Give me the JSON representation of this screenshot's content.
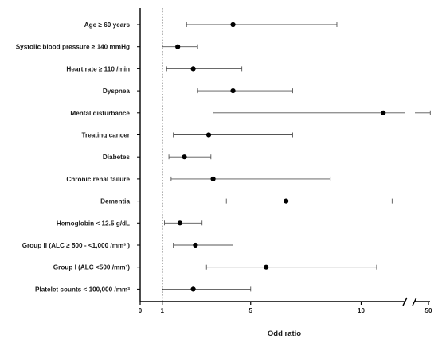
{
  "chart_data": {
    "type": "forest",
    "xlabel": "Odd ratio",
    "ylabel": "",
    "title": "",
    "x_ticks": [
      {
        "value": 0,
        "label": "0"
      },
      {
        "value": 1,
        "label": "1"
      },
      {
        "value": 5,
        "label": "5"
      },
      {
        "value": 10,
        "label": "10"
      },
      {
        "value": 50,
        "label": "50"
      }
    ],
    "x_axis_break": {
      "between": [
        13,
        50
      ]
    },
    "reference_line": 1,
    "grid": false,
    "rows": [
      {
        "label": "Age ≥ 60 years",
        "or": 4.2,
        "lower": 2.1,
        "upper": 8.9
      },
      {
        "label": "Systolic blood pressure ≥ 140 mmHg",
        "or": 1.7,
        "lower": 1.0,
        "upper": 2.6
      },
      {
        "label": "Heart rate ≥ 110 /min",
        "or": 2.4,
        "lower": 1.2,
        "upper": 4.6
      },
      {
        "label": "Dyspnea",
        "or": 4.2,
        "lower": 2.6,
        "upper": 6.9
      },
      {
        "label": "Mental disturbance",
        "or": 11.0,
        "lower": 3.3,
        "upper": 55.0
      },
      {
        "label": "Treating cancer",
        "or": 3.1,
        "lower": 1.5,
        "upper": 6.9
      },
      {
        "label": "Diabetes",
        "or": 2.0,
        "lower": 1.3,
        "upper": 3.2
      },
      {
        "label": "Chronic renal failure",
        "or": 3.3,
        "lower": 1.4,
        "upper": 8.6
      },
      {
        "label": "Dementia",
        "or": 6.6,
        "lower": 3.9,
        "upper": 11.4
      },
      {
        "label": "Hemoglobin < 12.5 g/dL",
        "or": 1.8,
        "lower": 1.1,
        "upper": 2.8
      },
      {
        "label": "Group II (ALC ≥ 500 - <1,000 /mm³ )",
        "or": 2.5,
        "lower": 1.5,
        "upper": 4.2
      },
      {
        "label": "Group I (ALC <500 /mm³)",
        "or": 5.7,
        "lower": 3.0,
        "upper": 10.7
      },
      {
        "label": "Platelet counts < 100,000 /mm³",
        "or": 2.4,
        "lower": 1.0,
        "upper": 5.0
      }
    ]
  }
}
